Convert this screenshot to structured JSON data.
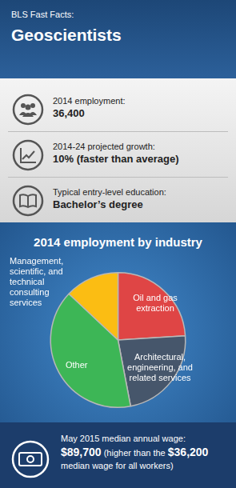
{
  "header": {
    "kicker": "BLS Fast Facts:",
    "title": "Geoscientists"
  },
  "facts": [
    {
      "label": "2014 employment:",
      "value": "36,400"
    },
    {
      "label": "2014-24 projected growth:",
      "value": "10% (faster than average)"
    },
    {
      "label": "Typical entry-level education:",
      "value": "Bachelor’s degree"
    }
  ],
  "chart_data": {
    "type": "pie",
    "title": "2014 employment by industry",
    "categories": [
      "Oil and gas extraction",
      "Architectural, engineering, and related services",
      "Other",
      "Management, scientific, and technical consulting services"
    ],
    "values": [
      24,
      23,
      40,
      13
    ],
    "colors": [
      "#df4545",
      "#46566b",
      "#3db656",
      "#fbbd13"
    ]
  },
  "footer": {
    "label": "May 2015 median annual wage:",
    "parts": [
      {
        "text": "$89,700",
        "bold": true
      },
      {
        "text": " (higher than the ",
        "bold": false
      },
      {
        "text": "$36,200",
        "bold": true
      },
      {
        "text": " median wage for all workers)",
        "bold": false
      }
    ]
  }
}
